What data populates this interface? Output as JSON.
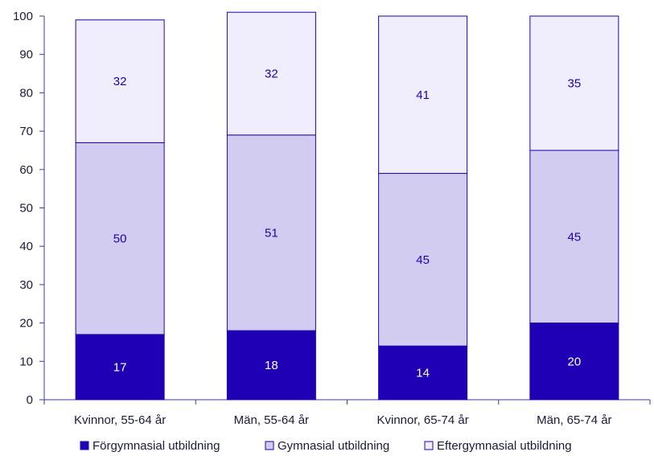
{
  "colors": {
    "forgymnasial": "#1f00b4",
    "gymnasial": "#d2ccf0",
    "eftergymnasial": "#f0eefc",
    "bar_border": "#1f00b4",
    "axis": "#3a3aa0",
    "text": "#1a1a3a"
  },
  "chart_data": {
    "type": "bar",
    "stacked": true,
    "title": "",
    "xlabel": "",
    "ylabel": "",
    "ylim": [
      0,
      100
    ],
    "yticks": [
      0,
      10,
      20,
      30,
      40,
      50,
      60,
      70,
      80,
      90,
      100
    ],
    "grid": false,
    "legend_position": "bottom",
    "categories": [
      "Kvinnor, 55-64 år",
      "Män, 55-64 år",
      "Kvinnor, 65-74 år",
      "Män, 65-74 år"
    ],
    "series": [
      {
        "name": "Förgymnasial utbildning",
        "values": [
          17,
          18,
          14,
          20
        ],
        "color": "#1f00b4",
        "label_color": "#ffffff"
      },
      {
        "name": "Gymnasial utbildning",
        "values": [
          50,
          51,
          45,
          45
        ],
        "color": "#d2ccf0",
        "label_color": "#1f00b4"
      },
      {
        "name": "Eftergymnasial utbildning",
        "values": [
          32,
          32,
          41,
          35
        ],
        "color": "#f0eefc",
        "label_color": "#1f00b4"
      }
    ]
  }
}
